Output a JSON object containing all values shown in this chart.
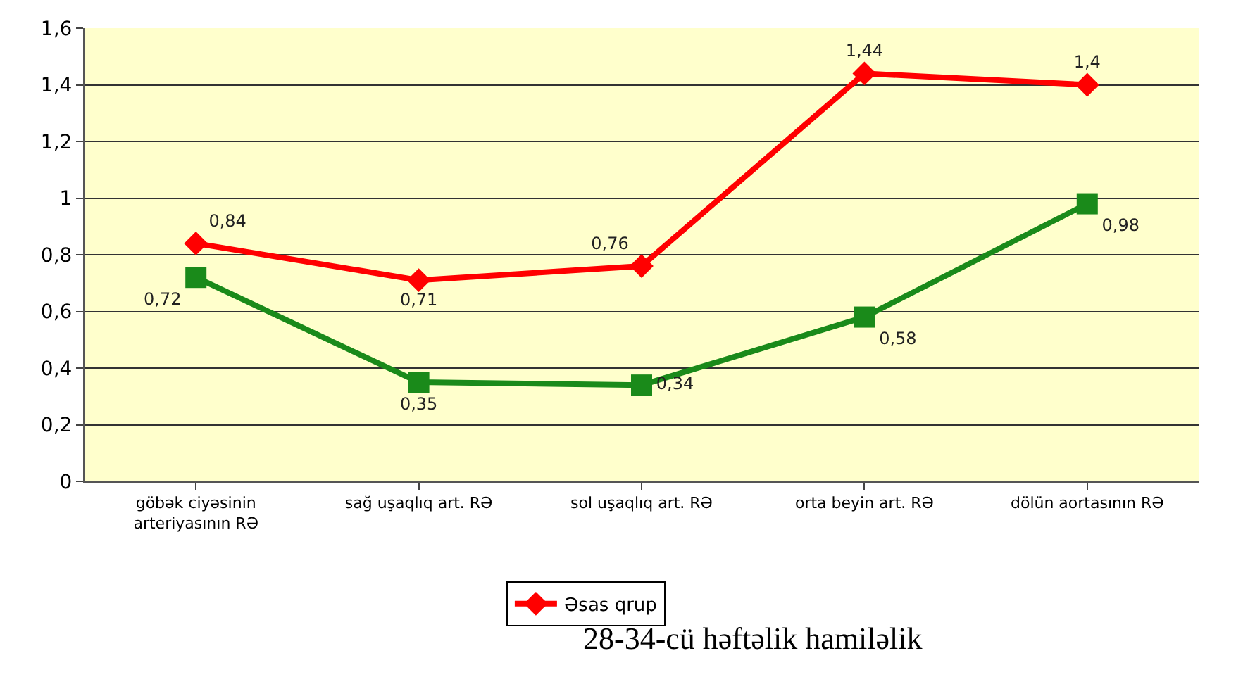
{
  "chart_data": {
    "type": "line",
    "categories": [
      "göbək ciyəsinin arteriyasının RƏ",
      "sağ uşaqlıq art. RƏ",
      "sol uşaqlıq art. RƏ",
      "orta beyin art. RƏ",
      "dölün aortasının RƏ"
    ],
    "series": [
      {
        "name": "Əsas qrup",
        "color": "#ff0000",
        "marker": "diamond",
        "values": [
          0.84,
          0.71,
          0.76,
          1.44,
          1.4
        ],
        "value_labels": [
          "0,84",
          "0,71",
          "0,76",
          "1,44",
          "1,4"
        ]
      },
      {
        "color": "#1a8a1a",
        "marker": "square",
        "values": [
          0.72,
          0.35,
          0.34,
          0.58,
          0.98
        ],
        "value_labels": [
          "0,72",
          "0,35",
          "0,34",
          "0,58",
          "0,98"
        ]
      }
    ],
    "ylim": [
      0,
      1.6
    ],
    "yticks": [
      0,
      {
        "value": 0.2,
        "label": "0,2"
      },
      {
        "value": 0.4,
        "label": "0,4"
      },
      {
        "value": 0.6,
        "label": "0,6"
      },
      {
        "value": 0.8,
        "label": "0,8"
      },
      1,
      {
        "value": 1.2,
        "label": "1,2"
      },
      {
        "value": 1.4,
        "label": "1,4"
      },
      {
        "value": 1.6,
        "label": "1,6"
      }
    ],
    "grid": "y",
    "legend": "bottom",
    "line_style": "solid",
    "annotations": [
      "28-34-cü həftəlik hamiləlik"
    ]
  }
}
